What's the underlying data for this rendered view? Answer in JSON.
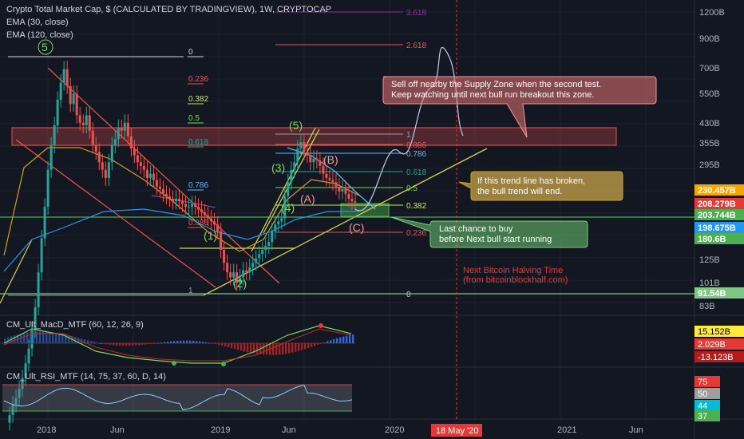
{
  "header": {
    "title": "Crypto Total Market Cap, $ (CALCULATED BY TRADINGVIEW), 1W, CRYPTOCAP",
    "ema30": "EMA (30, close)",
    "ema120": "EMA (120, close)"
  },
  "indicators": {
    "macd_title": "CM_Ult_MacD_MTF (60, 12, 26, 9)",
    "rsi_title": "CM_Ult_RSI_MTF (14, 75, 37, 60, D, 14)"
  },
  "annotations": {
    "supply_note_1": "Sell off nearby the Supply Zone when the second test.",
    "supply_note_2": "Keep watching until next bull run breakout this zone.",
    "trend_note_1": "If this trend line has broken,",
    "trend_note_2": "the bull trend will end.",
    "buy_note_1": "Last chance to buy",
    "buy_note_2": "before Next bull start running",
    "halving_1": "Next Bitcoin Halving Time",
    "halving_2": "(from bitcoinblockhalf.com)",
    "date_badge": "18 May '20"
  },
  "colors": {
    "background": "#131722",
    "up": "#26a69a",
    "down": "#ef5350",
    "ema30": "#d4a017",
    "ema120": "#2196f3",
    "fib_green": "#7ed957",
    "fib_red": "#ef5350",
    "trendline": "#d4d44a"
  },
  "chart_data": {
    "type": "candlestick",
    "x_ticks": [
      "2018",
      "Jun",
      "2019",
      "Jun",
      "2020",
      "Jun",
      "2021",
      "Jun"
    ],
    "y_ticks": [
      "1200B",
      "900B",
      "700B",
      "550B",
      "430B",
      "355B",
      "295B",
      "125B",
      "101B",
      "83B"
    ],
    "price_labels": [
      {
        "text": "230.457B",
        "color": "#f7a600"
      },
      {
        "text": "208.279B",
        "color": "#e53935"
      },
      {
        "text": "203.744B",
        "color": "#4caf50"
      },
      {
        "text": "198.675B",
        "color": "#2196f3"
      },
      {
        "text": "180.6B",
        "color": "#4caf50"
      },
      {
        "text": "91.54B",
        "color": "#81c784"
      }
    ],
    "macd_labels": [
      {
        "text": "15.152B",
        "color": "#ffeb3b"
      },
      {
        "text": "2.029B",
        "color": "#e53935"
      },
      {
        "text": "-13.123B",
        "color": "#b71c1c"
      }
    ],
    "rsi_labels": [
      {
        "text": "75",
        "color": "#e53935"
      },
      {
        "text": "50",
        "color": "#9e9e9e"
      },
      {
        "text": "44",
        "color": "#00bcd4"
      },
      {
        "text": "37",
        "color": "#4caf50"
      }
    ],
    "fib_left": [
      {
        "label": "0",
        "color": "#d1d4dc"
      },
      {
        "label": "0.236",
        "color": "#ef5350"
      },
      {
        "label": "0.382",
        "color": "#c8e66e"
      },
      {
        "label": "0.5",
        "color": "#7ed957"
      },
      {
        "label": "0.618",
        "color": "#26a69a"
      },
      {
        "label": "0.786",
        "color": "#64b5f6"
      },
      {
        "label": "0.886",
        "color": "#ef5350"
      },
      {
        "label": "1",
        "color": "#9e9e9e"
      }
    ],
    "fib_right": [
      {
        "label": "3.618",
        "color": "#9c27b0"
      },
      {
        "label": "2.618",
        "color": "#ef5350"
      },
      {
        "label": "1",
        "color": "#9e9e9e"
      },
      {
        "label": "0.886",
        "color": "#ef5350"
      },
      {
        "label": "0.786",
        "color": "#64b5f6"
      },
      {
        "label": "0.618",
        "color": "#26a69a"
      },
      {
        "label": "0.5",
        "color": "#7ed957"
      },
      {
        "label": "0.382",
        "color": "#c8e66e"
      },
      {
        "label": "0.236",
        "color": "#ef5350"
      },
      {
        "label": "0",
        "color": "#d1d4dc"
      }
    ],
    "waves": {
      "top5": "5",
      "w1": "(1)",
      "w2": "(2)",
      "w3": "(3)",
      "w4": "(4)",
      "w5": "(5)",
      "wA": "(A)",
      "wB": "(B)",
      "wC": "(C)"
    },
    "price_path_weekly_billions": [
      28,
      30,
      33,
      35,
      38,
      42,
      48,
      55,
      65,
      80,
      110,
      150,
      200,
      280,
      350,
      420,
      530,
      620,
      700,
      600,
      510,
      560,
      460,
      430,
      420,
      460,
      400,
      350,
      330,
      300,
      280,
      260,
      300,
      350,
      370,
      410,
      400,
      430,
      380,
      340,
      320,
      300,
      290,
      280,
      260,
      270,
      255,
      240,
      235,
      225,
      220,
      215,
      210,
      215,
      210,
      205,
      200,
      200,
      205,
      200,
      195,
      190,
      185,
      180,
      175,
      170,
      160,
      135,
      120,
      110,
      105,
      110,
      100,
      105,
      112,
      110,
      115,
      120,
      125,
      130,
      135,
      140,
      145,
      160,
      170,
      175,
      180,
      220,
      250,
      280,
      300,
      340,
      360,
      330,
      320,
      300,
      310,
      305,
      290,
      270,
      260,
      255,
      250,
      240,
      230,
      235,
      225,
      215,
      210,
      208
    ]
  }
}
